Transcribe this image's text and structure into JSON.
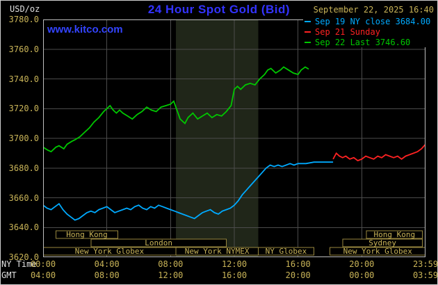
{
  "header": {
    "units": "USD/oz",
    "title": "24 Hour Spot Gold (Bid)",
    "datetime": "September 22, 2025 16:40",
    "watermark": "www.kitco.com"
  },
  "colors": {
    "title_blue": "#3333ff",
    "kitco_blue": "#3344ff",
    "tan": "#c9b458",
    "white_label": "#e0e0e0"
  },
  "legend": [
    {
      "label": "Sep 19 NY close 3684.00",
      "color": "#00aaff"
    },
    {
      "label": "Sep 21 Sunday",
      "color": "#ff2222"
    },
    {
      "label": "Sep 22 Last 3746.60",
      "color": "#00c800"
    }
  ],
  "chart_data": {
    "type": "line",
    "title": "24 Hour Spot Gold (Bid)",
    "ylabel": "USD/oz",
    "ylim": [
      3620,
      3780
    ],
    "y_ticks": [
      3780,
      3760,
      3740,
      3720,
      3700,
      3680,
      3660,
      3640,
      3620
    ],
    "x_hours_lim": [
      0,
      24
    ],
    "x_axis_row_labels": {
      "ny": "NY Time",
      "gmt": "GMT"
    },
    "x_ticks": [
      {
        "hour": 0,
        "ny": "00:00",
        "gmt": "04:00"
      },
      {
        "hour": 4,
        "ny": "04:00",
        "gmt": "08:00"
      },
      {
        "hour": 8,
        "ny": "08:00",
        "gmt": "12:00"
      },
      {
        "hour": 12,
        "ny": "12:00",
        "gmt": "16:00"
      },
      {
        "hour": 16,
        "ny": "16:00",
        "gmt": "20:00"
      },
      {
        "hour": 20,
        "ny": "20:00",
        "gmt": "00:00"
      },
      {
        "hour": 24,
        "ny": "23:59",
        "gmt": "03:59"
      }
    ],
    "grid_color": "#4c4c4c",
    "border_color": "#bebebe",
    "legend_position": "top-right",
    "highlight_band": {
      "start_hour": 8.33,
      "end_hour": 13.5,
      "color": "#202619"
    },
    "series": [
      {
        "id": "sep19",
        "name": "Sep 19 NY close",
        "color": "#00aaff",
        "close_value": 3684.0,
        "points": [
          [
            0,
            3655
          ],
          [
            0.25,
            3653
          ],
          [
            0.5,
            3652
          ],
          [
            0.75,
            3654
          ],
          [
            1,
            3656
          ],
          [
            1.25,
            3652
          ],
          [
            1.5,
            3649
          ],
          [
            1.75,
            3647
          ],
          [
            2,
            3645
          ],
          [
            2.25,
            3646
          ],
          [
            2.5,
            3648
          ],
          [
            2.75,
            3650
          ],
          [
            3,
            3651
          ],
          [
            3.25,
            3650
          ],
          [
            3.5,
            3652
          ],
          [
            3.75,
            3653
          ],
          [
            4,
            3654
          ],
          [
            4.25,
            3652
          ],
          [
            4.5,
            3650
          ],
          [
            4.75,
            3651
          ],
          [
            5,
            3652
          ],
          [
            5.25,
            3653
          ],
          [
            5.5,
            3652
          ],
          [
            5.75,
            3654
          ],
          [
            6,
            3655
          ],
          [
            6.25,
            3653
          ],
          [
            6.5,
            3652
          ],
          [
            6.75,
            3654
          ],
          [
            7,
            3653
          ],
          [
            7.25,
            3655
          ],
          [
            7.5,
            3654
          ],
          [
            7.75,
            3653
          ],
          [
            8,
            3652
          ],
          [
            8.25,
            3651
          ],
          [
            8.5,
            3650
          ],
          [
            8.75,
            3649
          ],
          [
            9,
            3648
          ],
          [
            9.25,
            3647
          ],
          [
            9.5,
            3646
          ],
          [
            9.75,
            3648
          ],
          [
            10,
            3650
          ],
          [
            10.25,
            3651
          ],
          [
            10.5,
            3652
          ],
          [
            10.75,
            3650
          ],
          [
            11,
            3649
          ],
          [
            11.25,
            3651
          ],
          [
            11.5,
            3652
          ],
          [
            11.75,
            3653
          ],
          [
            12,
            3655
          ],
          [
            12.25,
            3658
          ],
          [
            12.5,
            3662
          ],
          [
            12.75,
            3665
          ],
          [
            13,
            3668
          ],
          [
            13.25,
            3671
          ],
          [
            13.5,
            3674
          ],
          [
            13.75,
            3677
          ],
          [
            14,
            3680
          ],
          [
            14.25,
            3682
          ],
          [
            14.5,
            3681
          ],
          [
            14.75,
            3682
          ],
          [
            15,
            3681
          ],
          [
            15.25,
            3682
          ],
          [
            15.5,
            3683
          ],
          [
            15.75,
            3682
          ],
          [
            16,
            3683
          ],
          [
            16.5,
            3683
          ],
          [
            17,
            3684
          ],
          [
            17.6,
            3684
          ],
          [
            18.2,
            3684
          ]
        ]
      },
      {
        "id": "sep21",
        "name": "Sep 21 Sunday",
        "color": "#ff2222",
        "points": [
          [
            18.2,
            3686
          ],
          [
            18.4,
            3690
          ],
          [
            18.6,
            3688
          ],
          [
            18.8,
            3687
          ],
          [
            19,
            3688
          ],
          [
            19.25,
            3686
          ],
          [
            19.5,
            3687
          ],
          [
            19.75,
            3685
          ],
          [
            20,
            3686
          ],
          [
            20.25,
            3688
          ],
          [
            20.5,
            3687
          ],
          [
            20.75,
            3686
          ],
          [
            21,
            3688
          ],
          [
            21.25,
            3687
          ],
          [
            21.5,
            3689
          ],
          [
            21.75,
            3688
          ],
          [
            22,
            3687
          ],
          [
            22.25,
            3688
          ],
          [
            22.5,
            3686
          ],
          [
            22.75,
            3688
          ],
          [
            23,
            3689
          ],
          [
            23.25,
            3690
          ],
          [
            23.5,
            3691
          ],
          [
            23.75,
            3693
          ],
          [
            24,
            3696
          ]
        ]
      },
      {
        "id": "sep22",
        "name": "Sep 22",
        "color": "#00c800",
        "last_value": 3746.6,
        "points": [
          [
            0,
            3694
          ],
          [
            0.3,
            3692
          ],
          [
            0.5,
            3691
          ],
          [
            0.8,
            3694
          ],
          [
            1,
            3695
          ],
          [
            1.3,
            3693
          ],
          [
            1.5,
            3696
          ],
          [
            1.8,
            3698
          ],
          [
            2,
            3699
          ],
          [
            2.3,
            3701
          ],
          [
            2.6,
            3704
          ],
          [
            2.9,
            3707
          ],
          [
            3.2,
            3711
          ],
          [
            3.5,
            3714
          ],
          [
            3.8,
            3718
          ],
          [
            4,
            3720
          ],
          [
            4.2,
            3722
          ],
          [
            4.4,
            3719
          ],
          [
            4.6,
            3717
          ],
          [
            4.8,
            3719
          ],
          [
            5,
            3717
          ],
          [
            5.3,
            3715
          ],
          [
            5.6,
            3713
          ],
          [
            5.9,
            3716
          ],
          [
            6.2,
            3718
          ],
          [
            6.5,
            3721
          ],
          [
            6.8,
            3719
          ],
          [
            7.1,
            3718
          ],
          [
            7.4,
            3721
          ],
          [
            7.7,
            3722
          ],
          [
            8,
            3723
          ],
          [
            8.2,
            3725
          ],
          [
            8.4,
            3719
          ],
          [
            8.6,
            3713
          ],
          [
            8.9,
            3710
          ],
          [
            9.1,
            3714
          ],
          [
            9.4,
            3717
          ],
          [
            9.7,
            3713
          ],
          [
            10,
            3715
          ],
          [
            10.3,
            3717
          ],
          [
            10.6,
            3714
          ],
          [
            10.9,
            3716
          ],
          [
            11.2,
            3715
          ],
          [
            11.5,
            3718
          ],
          [
            11.8,
            3722
          ],
          [
            12,
            3733
          ],
          [
            12.2,
            3735
          ],
          [
            12.4,
            3733
          ],
          [
            12.7,
            3736
          ],
          [
            13,
            3737
          ],
          [
            13.3,
            3736
          ],
          [
            13.6,
            3740
          ],
          [
            13.9,
            3743
          ],
          [
            14.1,
            3746
          ],
          [
            14.3,
            3747
          ],
          [
            14.6,
            3744
          ],
          [
            14.9,
            3746
          ],
          [
            15.1,
            3748
          ],
          [
            15.4,
            3746
          ],
          [
            15.7,
            3744
          ],
          [
            16,
            3743
          ],
          [
            16.2,
            3746
          ],
          [
            16.45,
            3748
          ],
          [
            16.67,
            3746.6
          ]
        ]
      }
    ],
    "sessions": {
      "box_color": "#97863e",
      "text_color": "#c9b458",
      "rows": [
        [
          {
            "label": "Hong Kong",
            "start": 0.8,
            "end": 4.7
          },
          {
            "label": "Hong Kong",
            "start": 20.3,
            "end": 23.8
          }
        ],
        [
          {
            "label": "London",
            "start": 3.0,
            "end": 11.5
          },
          {
            "label": "Sydney",
            "start": 18.8,
            "end": 23.8
          }
        ],
        [
          {
            "label": "New York Globex",
            "start": 0.0,
            "end": 8.33
          },
          {
            "label": "New York NYMEX",
            "start": 8.33,
            "end": 13.5
          },
          {
            "label": "NY Globex",
            "start": 13.5,
            "end": 17.0
          },
          {
            "label": "New York Globex",
            "start": 18.0,
            "end": 24.0
          }
        ]
      ]
    }
  }
}
